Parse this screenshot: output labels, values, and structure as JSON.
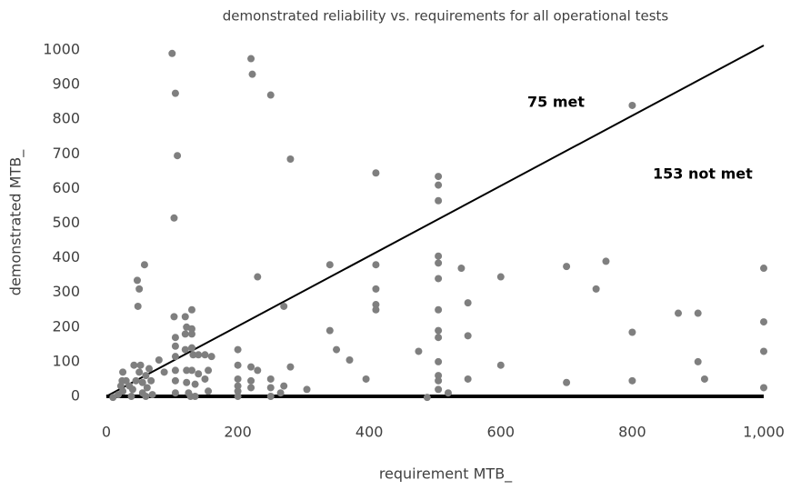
{
  "chart_data": {
    "type": "scatter",
    "title": "demonstrated reliability vs. requirements for all operational tests",
    "x_label": "requirement MTB_",
    "y_label": "demonstrated MTB_",
    "annotations": [
      "75 met",
      "153 not met"
    ],
    "color": "#7f7f7f",
    "xlim": [
      0,
      1000
    ],
    "ylim": [
      0,
      1000
    ],
    "xticks": [
      0,
      200,
      400,
      600,
      800,
      {
        "value": 1000,
        "label": "1,000"
      }
    ],
    "yticks": [
      0,
      100,
      200,
      300,
      400,
      500,
      600,
      700,
      800,
      900,
      1000
    ],
    "x": [
      10,
      18,
      25,
      22,
      24,
      25,
      30,
      35,
      38,
      40,
      42,
      45,
      47,
      48,
      50,
      50,
      52,
      55,
      55,
      58,
      60,
      60,
      62,
      65,
      68,
      70,
      80,
      88,
      100,
      105,
      108,
      103,
      103,
      105,
      105,
      105,
      105,
      105,
      105,
      120,
      120,
      120,
      122,
      122,
      122,
      125,
      128,
      130,
      130,
      130,
      130,
      130,
      132,
      135,
      135,
      140,
      140,
      150,
      150,
      155,
      155,
      160,
      200,
      200,
      200,
      200,
      200,
      200,
      220,
      222,
      220,
      220,
      220,
      230,
      230,
      250,
      250,
      250,
      250,
      265,
      270,
      270,
      280,
      280,
      305,
      340,
      340,
      350,
      370,
      395,
      410,
      410,
      410,
      410,
      410,
      475,
      488,
      505,
      505,
      505,
      505,
      505,
      505,
      505,
      505,
      505,
      505,
      505,
      505,
      505,
      520,
      540,
      550,
      550,
      550,
      600,
      600,
      700,
      700,
      745,
      760,
      800,
      800,
      800,
      870,
      900,
      900,
      910,
      1000,
      1000,
      1000,
      1000
    ],
    "y": [
      -3,
      5,
      15,
      30,
      45,
      70,
      45,
      30,
      0,
      20,
      90,
      45,
      335,
      260,
      310,
      70,
      90,
      40,
      10,
      380,
      0,
      60,
      25,
      80,
      45,
      5,
      105,
      70,
      990,
      875,
      695,
      515,
      230,
      170,
      145,
      75,
      45,
      10,
      115,
      230,
      135,
      180,
      200,
      75,
      40,
      10,
      0,
      195,
      180,
      250,
      140,
      75,
      120,
      35,
      0,
      65,
      120,
      120,
      50,
      75,
      15,
      115,
      135,
      90,
      50,
      30,
      15,
      0,
      975,
      930,
      85,
      45,
      25,
      345,
      75,
      870,
      50,
      25,
      0,
      10,
      260,
      30,
      685,
      85,
      20,
      380,
      190,
      135,
      105,
      50,
      645,
      380,
      310,
      265,
      250,
      130,
      -3,
      635,
      610,
      565,
      405,
      385,
      340,
      250,
      190,
      170,
      100,
      60,
      45,
      20,
      10,
      370,
      270,
      175,
      50,
      345,
      90,
      375,
      40,
      310,
      390,
      840,
      185,
      45,
      240,
      240,
      100,
      50,
      370,
      215,
      130,
      25
    ]
  }
}
